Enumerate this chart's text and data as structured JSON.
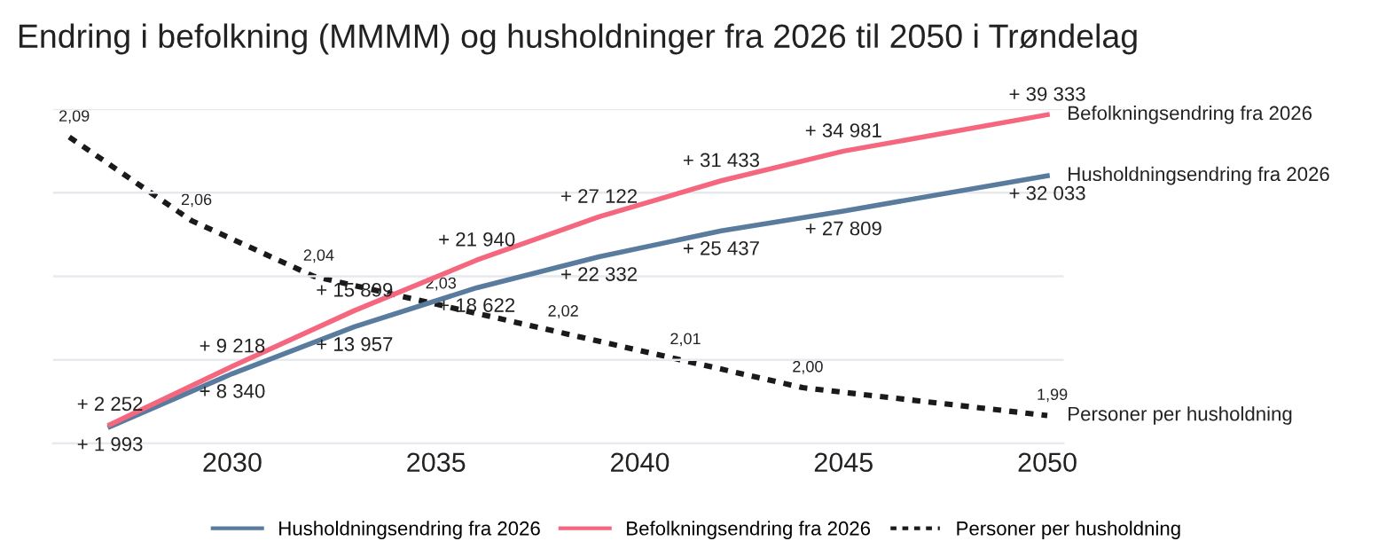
{
  "chart_data": {
    "type": "line",
    "title": "Endring i befolkning (MMMM) og husholdninger fra 2026 til 2050 i Trøndelag",
    "xlim": [
      2025.6,
      2050.4
    ],
    "xticks": [
      2030,
      2035,
      2040,
      2045,
      2050
    ],
    "ylim": [
      0,
      40000
    ],
    "yticks": [
      {
        "value": 0,
        "label": null
      },
      {
        "value": 10000,
        "label": null
      },
      {
        "value": 20000,
        "label": null
      },
      {
        "value": 30000,
        "label": null
      },
      {
        "value": 40000,
        "label": null
      }
    ],
    "y2lim": [
      1.98,
      2.1
    ],
    "tick_labels": "x",
    "grid": "y",
    "legend": "bottom",
    "marker": "none",
    "series": [
      {
        "name": "Husholdningsendring fra 2026",
        "color": "#587b9e",
        "line_style": "solid",
        "x": [
          2027,
          2030,
          2033,
          2036,
          2039,
          2042,
          2045,
          2050
        ],
        "values": [
          1993,
          8340,
          13957,
          18622,
          22332,
          25437,
          27809,
          32033
        ],
        "value_labels": [
          "+ 1 993",
          "+ 8 340",
          "+ 13 957",
          "+ 18 622",
          "+ 22 332",
          "+ 25 437",
          "+ 27 809",
          "+ 32 033"
        ]
      },
      {
        "name": "Befolkningsendring fra 2026",
        "color": "#f4677f",
        "line_style": "solid",
        "x": [
          2027,
          2030,
          2033,
          2036,
          2039,
          2042,
          2045,
          2050
        ],
        "values": [
          2252,
          9218,
          15899,
          21940,
          27122,
          31433,
          34981,
          39333
        ],
        "value_labels": [
          "+ 2 252",
          "+ 9 218",
          "+ 15 899",
          "+ 21 940",
          "+ 27 122",
          "+ 31 433",
          "+ 34 981",
          "+ 39 333"
        ]
      },
      {
        "name": "Personer per husholdning",
        "color": "#1a1a1a",
        "line_style": "dotted",
        "axis": "y2",
        "x": [
          2026,
          2029,
          2032,
          2035,
          2038,
          2041,
          2044,
          2050
        ],
        "values": [
          2.09,
          2.06,
          2.04,
          2.03,
          2.02,
          2.01,
          2.0,
          1.99
        ],
        "value_labels": [
          "2,09",
          "2,06",
          "2,04",
          "2,03",
          "2,02",
          "2,01",
          "2,00",
          "1,99"
        ]
      }
    ]
  }
}
